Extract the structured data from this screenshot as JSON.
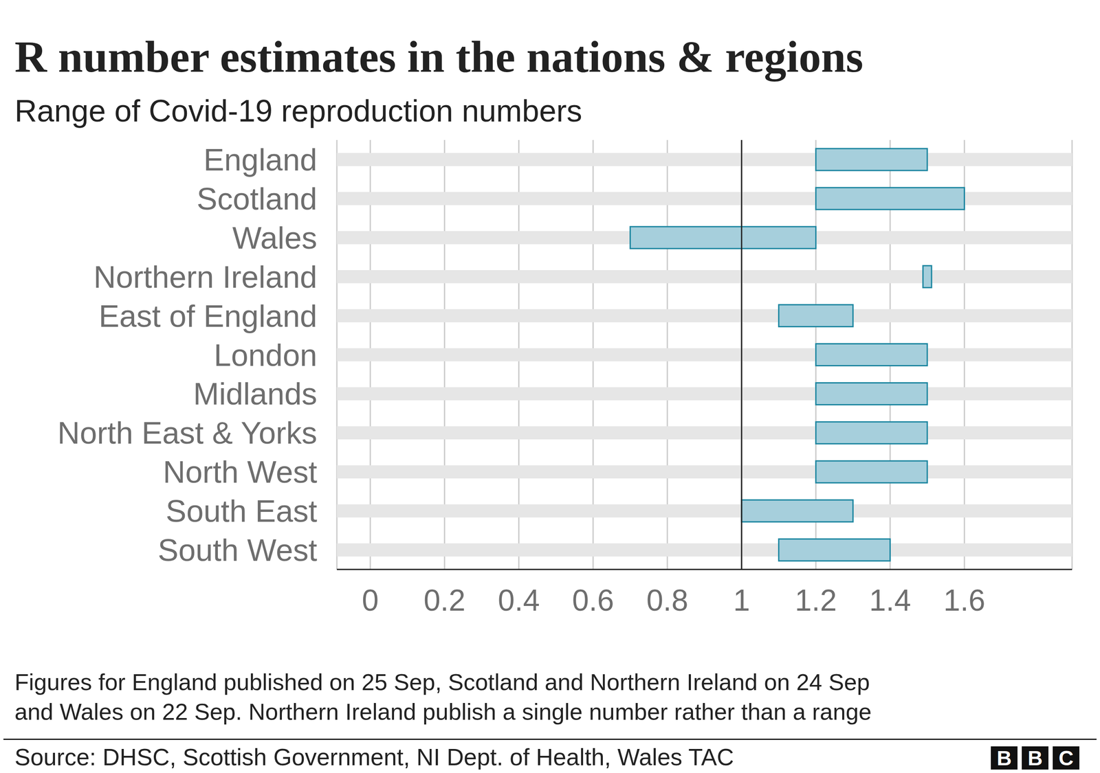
{
  "chart_data": {
    "type": "range_bar",
    "orientation": "horizontal",
    "title": "R number estimates in the nations & regions",
    "subtitle": "Range of Covid-19 reproduction numbers",
    "categories": [
      "England",
      "Scotland",
      "Wales",
      "Northern Ireland",
      "East of England",
      "London",
      "Midlands",
      "North East & Yorks",
      "North West",
      "South East",
      "South West"
    ],
    "low": [
      1.2,
      1.2,
      0.7,
      1.5,
      1.1,
      1.2,
      1.2,
      1.2,
      1.2,
      1.0,
      1.1
    ],
    "high": [
      1.5,
      1.6,
      1.2,
      1.5,
      1.3,
      1.5,
      1.5,
      1.5,
      1.5,
      1.3,
      1.4
    ],
    "color": "#a6cfdc",
    "xlim": [
      -0.09,
      1.89
    ],
    "xticks": [
      0,
      0.2,
      0.4,
      0.6,
      0.8,
      1,
      1.2,
      1.4,
      1.6
    ],
    "reference_line": 1,
    "grid": true,
    "footnote": [
      "Figures for England published on 25 Sep, Scotland and Northern Ireland on 24 Sep",
      "and Wales on 22 Sep. Northern Ireland publish a single number rather than a range"
    ],
    "source": "Source: DHSC, Scottish Government, NI Dept. of Health, Wales TAC",
    "logo": "BBC"
  }
}
